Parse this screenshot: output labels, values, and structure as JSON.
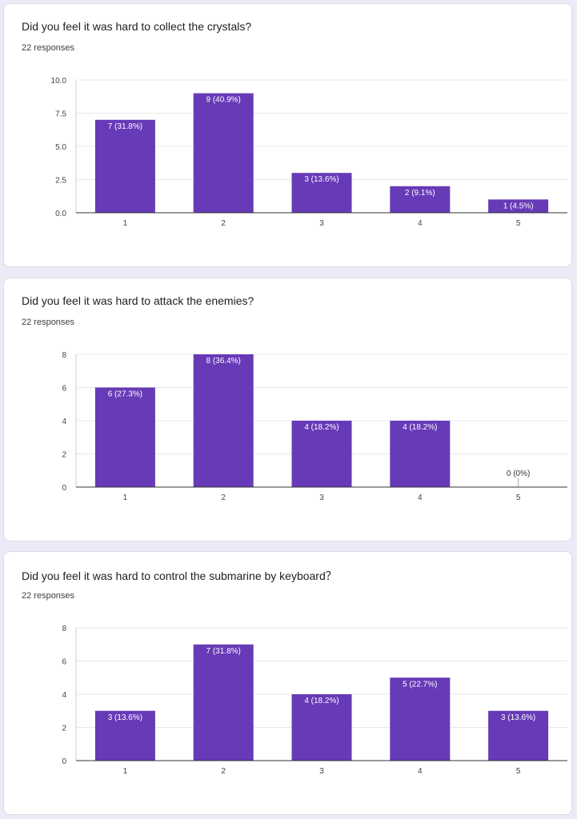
{
  "accent": "#673ab7",
  "charts": [
    {
      "title": "Did you feel it was hard to collect the crystals?",
      "responses": "22 responses",
      "chart_data": {
        "type": "bar",
        "categories": [
          "1",
          "2",
          "3",
          "4",
          "5"
        ],
        "values": [
          7,
          9,
          3,
          2,
          1
        ],
        "labels": [
          "7 (31.8%)",
          "9 (40.9%)",
          "3 (13.6%)",
          "2 (9.1%)",
          "1 (4.5%)"
        ],
        "yticks": [
          "0.0",
          "2.5",
          "5.0",
          "7.5",
          "10.0"
        ],
        "ylim": [
          0,
          10
        ],
        "grid": true
      }
    },
    {
      "title": "Did you feel it was hard to attack the enemies?",
      "responses": "22 responses",
      "chart_data": {
        "type": "bar",
        "categories": [
          "1",
          "2",
          "3",
          "4",
          "5"
        ],
        "values": [
          6,
          8,
          4,
          4,
          0
        ],
        "labels": [
          "6 (27.3%)",
          "8 (36.4%)",
          "4 (18.2%)",
          "4 (18.2%)",
          "0 (0%)"
        ],
        "yticks": [
          "0",
          "2",
          "4",
          "6",
          "8"
        ],
        "ylim": [
          0,
          8
        ],
        "grid": true
      }
    },
    {
      "title": "Did you feel it was hard to control the submarine by keyboard？",
      "responses": "22 responses",
      "chart_data": {
        "type": "bar",
        "categories": [
          "1",
          "2",
          "3",
          "4",
          "5"
        ],
        "values": [
          3,
          7,
          4,
          5,
          3
        ],
        "labels": [
          "3 (13.6%)",
          "7 (31.8%)",
          "4 (18.2%)",
          "5 (22.7%)",
          "3 (13.6%)"
        ],
        "yticks": [
          "0",
          "2",
          "4",
          "6",
          "8"
        ],
        "ylim": [
          0,
          8
        ],
        "grid": true
      }
    }
  ]
}
